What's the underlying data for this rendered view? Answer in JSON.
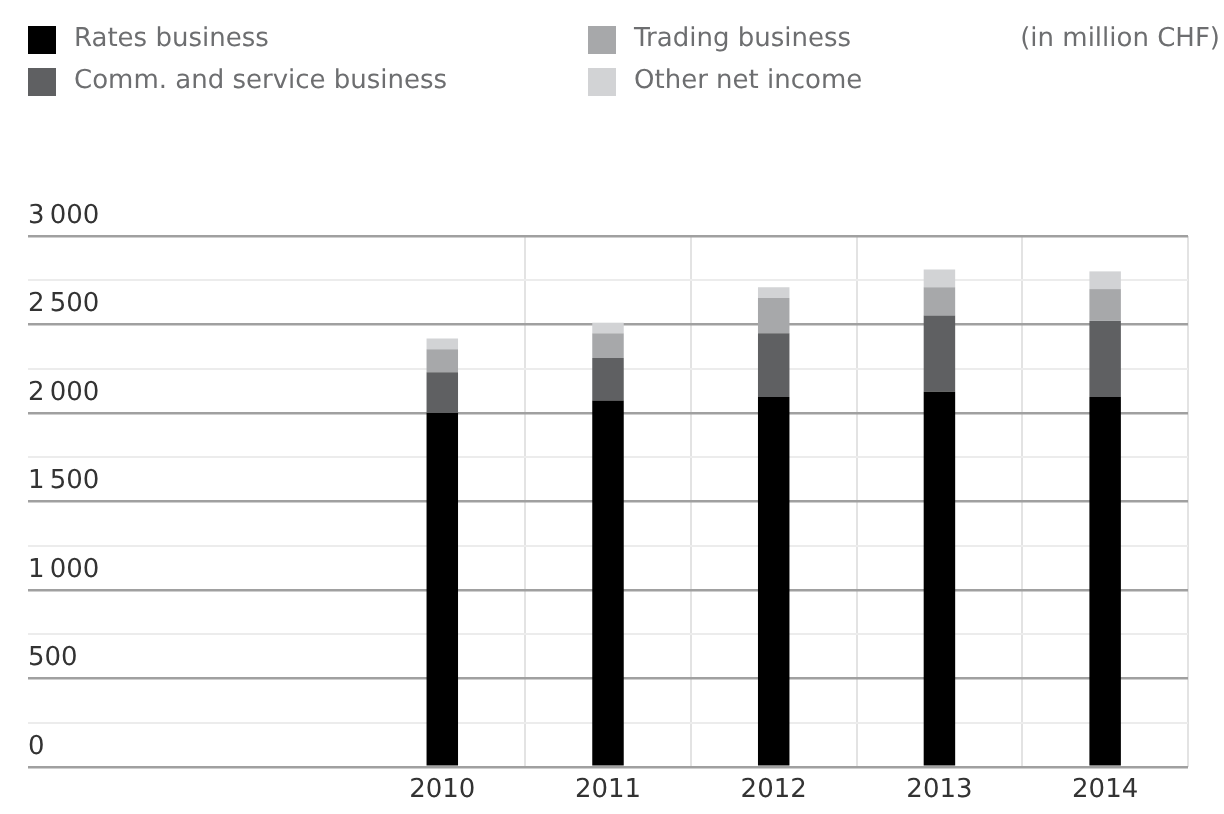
{
  "chart_data": {
    "type": "bar",
    "stacked": true,
    "categories": [
      null,
      null,
      "2010",
      "2011",
      "2012",
      "2013",
      "2014"
    ],
    "series": [
      {
        "name": "Rates business",
        "color": "#000000",
        "values": [
          null,
          null,
          2000,
          2070,
          2090,
          2120,
          2090
        ]
      },
      {
        "name": "Comm. and service business",
        "color": "#5f6062",
        "values": [
          null,
          null,
          230,
          240,
          360,
          430,
          430
        ]
      },
      {
        "name": "Trading business",
        "color": "#a7a8aa",
        "values": [
          null,
          null,
          130,
          140,
          200,
          160,
          180
        ]
      },
      {
        "name": "Other net income",
        "color": "#d2d3d5",
        "values": [
          null,
          null,
          60,
          60,
          60,
          100,
          100
        ]
      }
    ],
    "ylim": [
      0,
      3000
    ],
    "yticks": [
      0,
      {
        "value": 250,
        "label": null
      },
      500,
      {
        "value": 750,
        "label": null
      },
      1000,
      {
        "value": 1250,
        "label": null
      },
      1500,
      {
        "value": 1750,
        "label": null
      },
      2000,
      {
        "value": 2250,
        "label": null
      },
      2500,
      {
        "value": 2750,
        "label": null
      },
      3000
    ],
    "grid": true,
    "legend": "top left",
    "annotations": [
      "(in million CHF)"
    ]
  }
}
